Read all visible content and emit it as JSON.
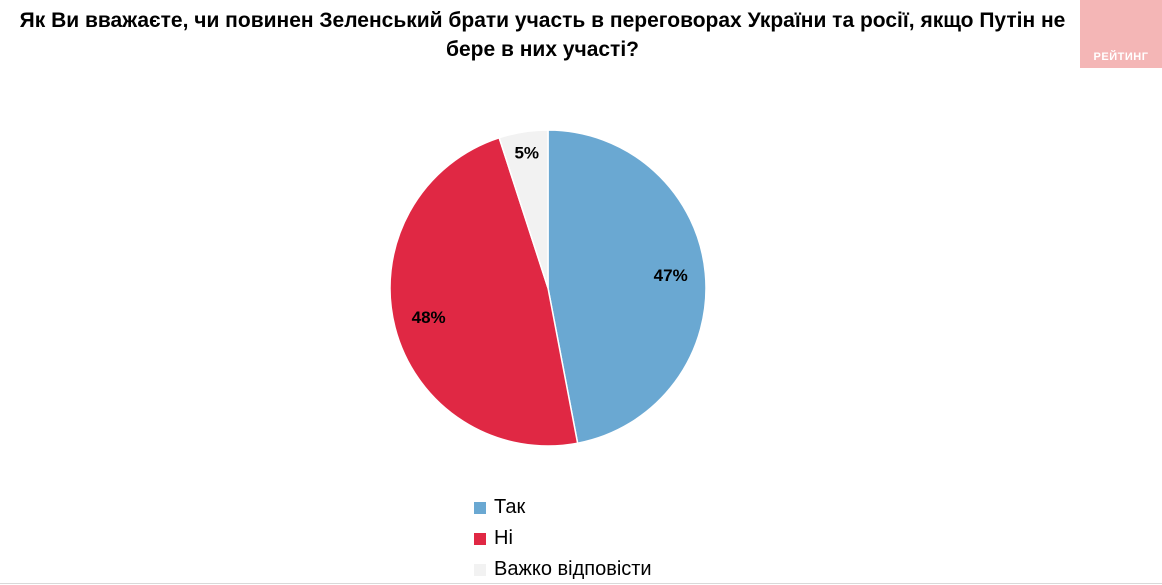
{
  "chart_data": {
    "type": "pie",
    "title": "Як Ви вважаєте, чи повинен Зеленський брати участь в переговорах України та росії, якщо Путін не бере в них участі?",
    "slices": [
      {
        "label": "Так",
        "value": 47,
        "data_label": "47%",
        "color": "#6aa8d2"
      },
      {
        "label": "Ні",
        "value": 48,
        "data_label": "48%",
        "color": "#e02844"
      },
      {
        "label": "Важко відповісти",
        "value": 5,
        "data_label": "5%",
        "color": "#f2f2f2"
      }
    ],
    "start_angle_deg": 0,
    "direction": "clockwise",
    "legend_position": "bottom"
  },
  "logo": {
    "text": "РЕЙТИНГ"
  }
}
